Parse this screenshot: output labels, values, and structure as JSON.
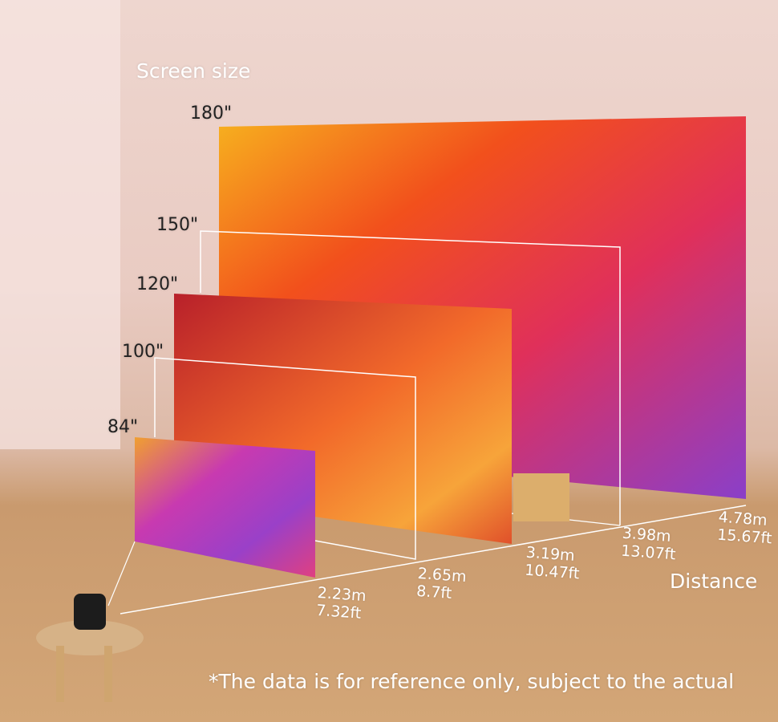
{
  "heading": "Screen size",
  "sizes": [
    "180\"",
    "150\"",
    "120\"",
    "100\"",
    "84\""
  ],
  "distances": [
    {
      "m": "2.23m",
      "ft": "7.32ft"
    },
    {
      "m": "2.65m",
      "ft": "8.7ft"
    },
    {
      "m": "3.19m",
      "ft": "10.47ft"
    },
    {
      "m": "3.98m",
      "ft": "13.07ft"
    },
    {
      "m": "4.78m",
      "ft": "15.67ft"
    }
  ],
  "distance_label": "Distance",
  "disclaimer": "*The data is for reference only, subject to the actual"
}
